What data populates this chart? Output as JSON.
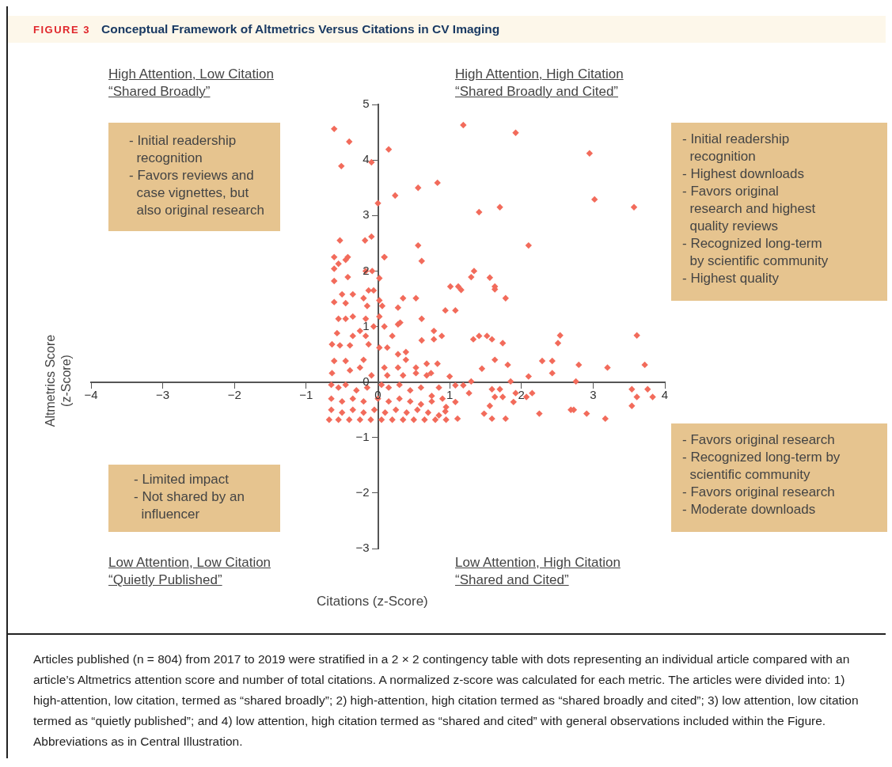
{
  "chart_data": {
    "type": "scatter",
    "title": "Conceptual Framework of Altmetrics Versus Citations in CV Imaging",
    "xlabel": "Citations (z-Score)",
    "ylabel": "Altmetrics Score\n(z-Score)",
    "annotations": [
      "FIGURE 3",
      "High Attention, Low Citation\n“Shared Broadly”",
      "High Attention, High Citation\n“Shared Broadly and Cited”",
      "Low Attention, Low Citation\n“Quietly Published”",
      "Low Attention, High Citation\n“Shared and Cited”",
      "- Initial readership\n  recognition\n- Favors reviews and\n  case vignettes, but\n  also original research",
      "- Initial readership\n  recognition\n- Highest downloads\n- Favors original\n  research and highest\n  quality reviews\n- Recognized long-term\n  by scientific community\n- Highest quality",
      "- Limited impact\n- Not shared by an\n  influencer",
      "- Favors original research\n- Recognized long-term by\n  scientific community\n- Favors original research\n- Moderate downloads",
      "Articles published (n = 804) from 2017 to 2019 were stratified in a 2 × 2 contingency table with dots representing an individual article compared with an article’s Altmetrics attention score and number of total citations. A normalized z-score was calculated for each metric. The articles were divided into: 1) high-attention, low citation, termed as “shared broadly”; 2) high-attention, high citation termed as “shared broadly and cited”; 3) low attention, low citation termed as “quietly published”; and 4) low attention, high citation termed as “shared and cited” with general observations included within the Figure. Abbreviations as in Central Illustration."
    ],
    "x": [
      -0.61,
      -0.4,
      -0.51,
      -0.09,
      0.15,
      0.0,
      0.24,
      0.56,
      0.83,
      1.19,
      1.41,
      1.7,
      1.92,
      2.95,
      3.02,
      3.57,
      -0.53,
      -0.18,
      -0.09,
      0.56,
      2.1,
      0.09,
      0.61,
      1.3,
      1.34,
      1.56,
      1.63,
      1.63,
      1.78,
      1.01,
      1.12,
      1.16,
      0.94,
      1.08,
      0.53,
      0.35,
      0.61,
      0.61,
      0.78,
      0.78,
      0.89,
      1.33,
      1.41,
      1.52,
      1.59,
      1.74,
      2.54,
      2.51,
      3.61,
      1.63,
      1.81,
      2.29,
      2.43,
      2.43,
      2.8,
      3.2,
      3.72,
      1.45,
      2.1,
      2.76,
      1.85,
      1.3,
      3.54,
      3.76,
      3.61,
      3.83,
      3.54,
      3.17,
      2.91,
      2.69,
      2.73,
      2.25,
      2.15,
      2.07,
      1.92,
      1.89,
      1.74,
      1.7,
      1.63,
      1.59,
      1.56,
      1.48,
      1.59,
      1.78,
      1.19,
      1.08,
      1.27,
      1.08,
      1.0,
      1.11,
      0.94,
      -0.61,
      -0.42,
      -0.45,
      -0.61,
      -0.55,
      -0.61,
      -0.42,
      -0.17,
      -0.08,
      0.02,
      0.09,
      -0.5,
      -0.35,
      -0.13,
      -0.06,
      -0.61,
      -0.45,
      -0.2,
      0.02,
      -0.15,
      0.06,
      -0.55,
      -0.45,
      -0.35,
      -0.17,
      0.02,
      -0.06,
      -0.25,
      0.09,
      -0.57,
      -0.35,
      -0.17,
      0.2,
      0.28,
      0.31,
      0.28,
      -0.64,
      -0.53,
      -0.39,
      -0.13,
      0.02,
      0.13,
      0.28,
      0.39,
      0.39,
      -0.2,
      -0.61,
      -0.45,
      0.09,
      0.28,
      0.68,
      0.83,
      0.53,
      0.74,
      0.53,
      0.68,
      0.35,
      0.13,
      -0.64,
      -0.39,
      -0.25,
      -0.09,
      -0.65,
      -0.55,
      -0.45,
      -0.3,
      -0.15,
      0.05,
      0.15,
      0.3,
      0.45,
      0.6,
      0.75,
      0.85,
      0.9,
      -0.65,
      -0.5,
      -0.35,
      -0.2,
      0.0,
      0.15,
      0.3,
      0.45,
      0.6,
      0.75,
      0.95,
      -0.65,
      -0.5,
      -0.35,
      -0.2,
      -0.05,
      0.1,
      0.25,
      0.4,
      0.55,
      0.7,
      0.85,
      -0.68,
      -0.55,
      -0.4,
      -0.25,
      -0.1,
      0.05,
      0.2,
      0.35,
      0.5,
      0.65,
      0.8,
      0.95
    ],
    "values": [
      4.56,
      4.33,
      3.89,
      3.96,
      4.19,
      3.22,
      3.36,
      3.5,
      3.59,
      4.63,
      3.06,
      3.15,
      4.49,
      4.12,
      3.29,
      3.15,
      2.55,
      2.55,
      2.62,
      2.46,
      2.46,
      2.25,
      2.18,
      1.89,
      2.0,
      1.88,
      1.72,
      1.67,
      1.51,
      1.72,
      1.72,
      1.66,
      1.29,
      1.29,
      1.51,
      1.51,
      1.14,
      0.75,
      0.92,
      0.77,
      0.83,
      0.77,
      0.83,
      0.83,
      0.77,
      0.7,
      0.84,
      0.7,
      0.84,
      0.4,
      0.31,
      0.38,
      0.38,
      0.16,
      0.31,
      0.26,
      0.31,
      0.24,
      0.1,
      0.01,
      0.01,
      0.01,
      -0.13,
      -0.13,
      -0.27,
      -0.27,
      -0.43,
      -0.66,
      -0.57,
      -0.5,
      -0.5,
      -0.57,
      -0.2,
      -0.27,
      -0.2,
      -0.36,
      -0.27,
      -0.13,
      -0.27,
      -0.13,
      -0.43,
      -0.57,
      -0.66,
      -0.66,
      -0.06,
      -0.06,
      -0.2,
      -0.36,
      0.1,
      -0.66,
      -0.53,
      2.25,
      2.25,
      2.2,
      2.04,
      2.13,
      1.82,
      1.89,
      2.0,
      2.0,
      1.87,
      2.25,
      1.58,
      1.58,
      1.65,
      1.65,
      1.44,
      1.42,
      1.51,
      1.47,
      1.37,
      1.37,
      1.14,
      1.14,
      1.18,
      1.14,
      1.18,
      1.0,
      0.92,
      1.0,
      0.88,
      0.83,
      0.83,
      0.83,
      1.04,
      1.07,
      1.34,
      0.68,
      0.66,
      0.66,
      0.68,
      0.62,
      0.62,
      0.5,
      0.54,
      0.4,
      0.4,
      0.38,
      0.38,
      0.26,
      0.26,
      0.33,
      0.33,
      0.26,
      0.16,
      0.16,
      0.12,
      0.12,
      0.12,
      0.16,
      0.21,
      0.26,
      0.12,
      -0.05,
      -0.1,
      -0.05,
      -0.15,
      -0.1,
      -0.05,
      -0.1,
      -0.05,
      -0.15,
      -0.1,
      -0.25,
      -0.1,
      -0.3,
      -0.3,
      -0.35,
      -0.3,
      -0.35,
      -0.3,
      -0.35,
      -0.3,
      -0.35,
      -0.4,
      -0.35,
      -0.45,
      -0.5,
      -0.55,
      -0.5,
      -0.55,
      -0.5,
      -0.55,
      -0.5,
      -0.55,
      -0.5,
      -0.55,
      -0.6,
      -0.68,
      -0.68,
      -0.68,
      -0.68,
      -0.68,
      -0.68,
      -0.68,
      -0.68,
      -0.68,
      -0.68,
      -0.68,
      -0.68
    ],
    "color": "#f26b5b",
    "marker": "diamond",
    "grid": false,
    "legend": false,
    "xlim": [
      -4,
      4
    ],
    "xticks": [
      {
        "value": -4,
        "label": "−4"
      },
      {
        "value": -3,
        "label": "−3"
      },
      {
        "value": -2,
        "label": "−2"
      },
      {
        "value": -1,
        "label": "−1"
      },
      0,
      1,
      2,
      3,
      4
    ],
    "ylim": [
      -3,
      5
    ],
    "yticks": [
      {
        "value": -3,
        "label": "−3"
      },
      {
        "value": -2,
        "label": "−2"
      },
      {
        "value": -1,
        "label": "−1"
      },
      0,
      1,
      2,
      3,
      4,
      5
    ]
  }
}
